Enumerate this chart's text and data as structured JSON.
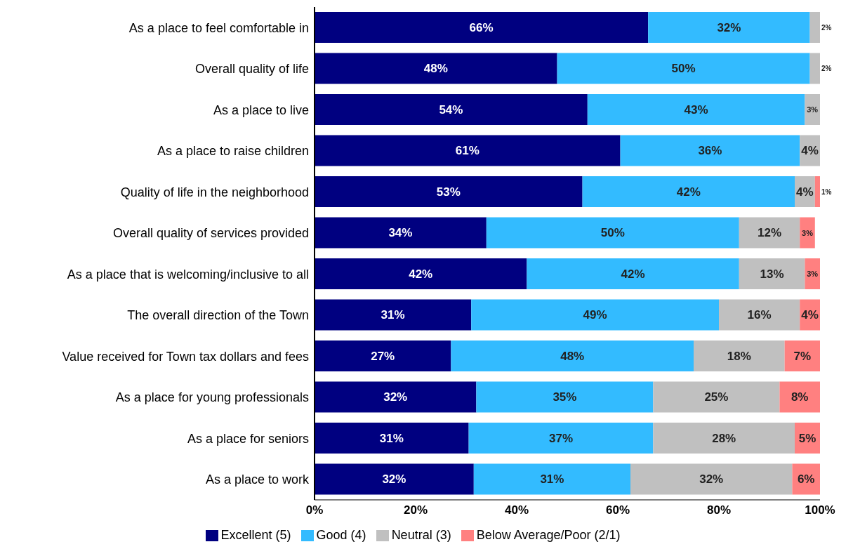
{
  "chart_data": {
    "type": "bar",
    "orientation": "horizontal",
    "stacked": true,
    "categories": [
      "As a place to feel comfortable in",
      "Overall quality of life",
      "As a place to live",
      "As a place to raise children",
      "Quality of life in the neighborhood",
      "Overall quality of services provided",
      "As a place that is welcoming/inclusive to all",
      "The overall direction of the Town",
      "Value received for Town tax dollars and fees",
      "As a place for young professionals",
      "As a place for seniors",
      "As a place to work"
    ],
    "series": [
      {
        "name": "Excellent (5)",
        "color": "#000080",
        "values": [
          66,
          48,
          54,
          60.5,
          53,
          34,
          42,
          31,
          27,
          32,
          30.5,
          31.5
        ],
        "value_labels": [
          "66%",
          "48%",
          "54%",
          "61%",
          "53%",
          "34%",
          "42%",
          "31%",
          "27%",
          "32%",
          "31%",
          "32%"
        ]
      },
      {
        "name": "Good (4)",
        "color": "#33bbff",
        "values": [
          32,
          50,
          43,
          35.5,
          42,
          50,
          42,
          49,
          48,
          35,
          36.5,
          31
        ],
        "value_labels": [
          "32%",
          "50%",
          "43%",
          "36%",
          "42%",
          "50%",
          "42%",
          "49%",
          "48%",
          "35%",
          "37%",
          "31%"
        ]
      },
      {
        "name": "Neutral (3)",
        "color": "#c0c0c0",
        "values": [
          2,
          2,
          3,
          4,
          4,
          12,
          13,
          16,
          18,
          25,
          28,
          32
        ],
        "value_labels": [
          "2%",
          "2%",
          "3%",
          "4%",
          "4%",
          "12%",
          "13%",
          "16%",
          "18%",
          "25%",
          "28%",
          "32%"
        ]
      },
      {
        "name": "Below Average/Poor (2/1)",
        "color": "#ff8080",
        "values": [
          0,
          0,
          0,
          0,
          1,
          3,
          3,
          4,
          7,
          8,
          5,
          5.5
        ],
        "value_labels": [
          null,
          null,
          null,
          null,
          "1%",
          "3%",
          "3%",
          "4%",
          "7%",
          "8%",
          "5%",
          "6%"
        ]
      }
    ],
    "xlim": [
      0,
      100
    ],
    "xticks": [
      {
        "value": 0,
        "label": "0%"
      },
      {
        "value": 20,
        "label": "20%"
      },
      {
        "value": 40,
        "label": "40%"
      },
      {
        "value": 60,
        "label": "60%"
      },
      {
        "value": 80,
        "label": "80%"
      },
      {
        "value": 100,
        "label": "100%"
      }
    ],
    "legend": "bottom"
  }
}
